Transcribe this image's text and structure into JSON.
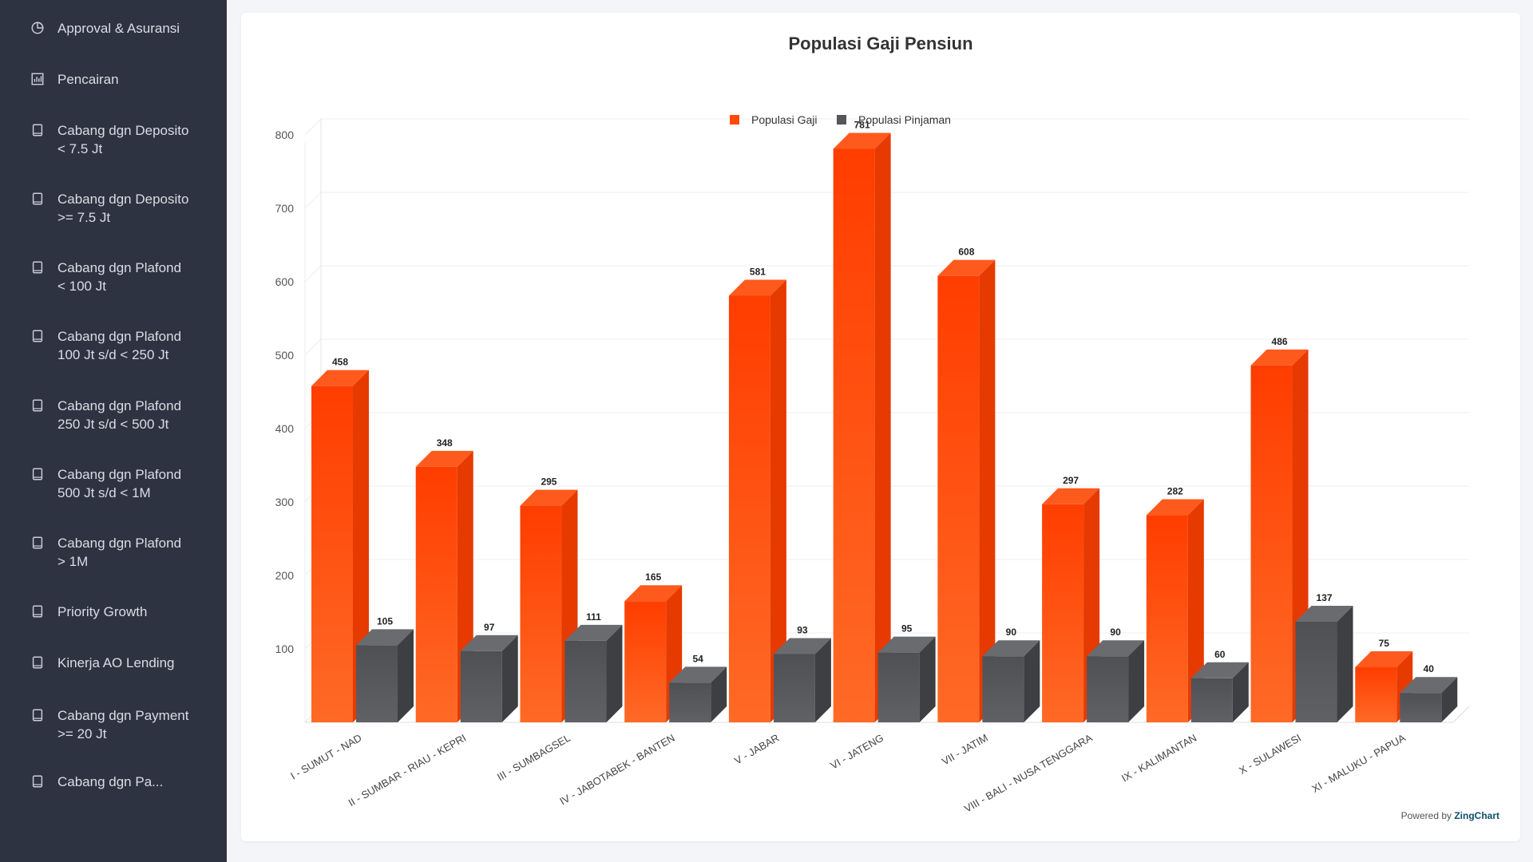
{
  "sidebar": {
    "items": [
      {
        "label": "Approval & Asuransi",
        "icon": "pie-chart-icon"
      },
      {
        "label": "Pencairan",
        "icon": "bar-chart-icon"
      },
      {
        "label": "Cabang dgn Deposito\n< 7.5 Jt",
        "icon": "book-icon"
      },
      {
        "label": "Cabang dgn Deposito\n>= 7.5 Jt",
        "icon": "book-icon"
      },
      {
        "label": "Cabang dgn Plafond\n< 100 Jt",
        "icon": "book-icon"
      },
      {
        "label": "Cabang dgn Plafond\n100 Jt s/d < 250 Jt",
        "icon": "book-icon"
      },
      {
        "label": "Cabang dgn Plafond\n250 Jt s/d < 500 Jt",
        "icon": "book-icon"
      },
      {
        "label": "Cabang dgn Plafond\n500 Jt s/d < 1M",
        "icon": "book-icon"
      },
      {
        "label": "Cabang dgn Plafond\n> 1M",
        "icon": "book-icon"
      },
      {
        "label": "Priority Growth",
        "icon": "book-icon"
      },
      {
        "label": "Kinerja AO Lending",
        "icon": "book-icon"
      },
      {
        "label": "Cabang dgn Payment\n>= 20 Jt",
        "icon": "book-icon"
      },
      {
        "label": "Cabang dgn Pa...",
        "icon": "book-icon"
      }
    ]
  },
  "powered": {
    "prefix": "Powered by ",
    "brand": "ZingChart"
  },
  "colors": {
    "gaji": "#ff4a0a",
    "pinjaman": "#555659",
    "sidebar": "#2d3340"
  },
  "chart_data": {
    "type": "bar",
    "title": "Populasi Gaji Pensiun",
    "categories": [
      "I - SUMUT - NAD",
      "II - SUMBAR - RIAU - KEPRI",
      "III - SUMBAGSEL",
      "IV - JABOTABEK - BANTEN",
      "V - JABAR",
      "VI - JATENG",
      "VII - JATIM",
      "VIII - BALI - NUSA TENGGARA",
      "IX - KALIMANTAN",
      "X - SULAWESI",
      "XI - MALUKU - PAPUA"
    ],
    "series": [
      {
        "name": "Populasi Gaji",
        "values": [
          458,
          348,
          295,
          165,
          581,
          781,
          608,
          297,
          282,
          486,
          75
        ]
      },
      {
        "name": "Populasi Pinjaman",
        "values": [
          105,
          97,
          111,
          54,
          93,
          95,
          90,
          90,
          60,
          137,
          40
        ]
      }
    ],
    "yticks": [
      100,
      200,
      300,
      400,
      500,
      600,
      700,
      800
    ],
    "ylim": [
      0,
      800
    ],
    "legend": "top-center",
    "grid": true,
    "style": "3d"
  }
}
